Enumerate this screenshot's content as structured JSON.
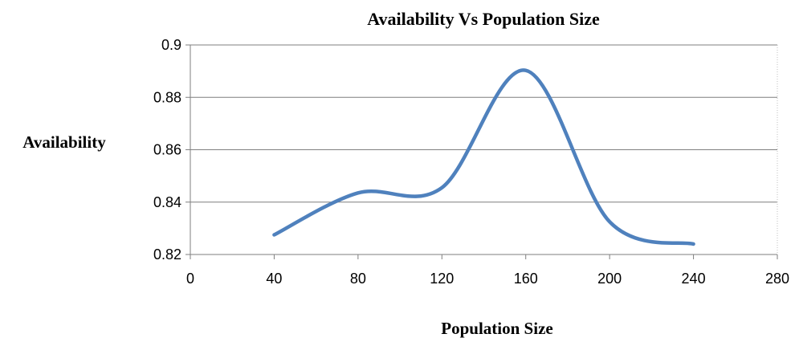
{
  "chart_data": {
    "type": "line",
    "title": "Availability Vs Population Size",
    "xlabel": "Population Size",
    "ylabel": "Availability",
    "xlim": [
      0,
      280
    ],
    "ylim": [
      0.82,
      0.9
    ],
    "xticks": [
      "0",
      "40",
      "80",
      "120",
      "160",
      "200",
      "240",
      "280"
    ],
    "yticks": [
      "0.82",
      "0.84",
      "0.86",
      "0.88",
      "0.9"
    ],
    "grid": "horizontal",
    "legend": "none",
    "series": [
      {
        "color": "#4f81bd",
        "smooth": true,
        "x": [
          40,
          80,
          120,
          160,
          200,
          240
        ],
        "y": [
          0.8275,
          0.8435,
          0.8455,
          0.8903,
          0.8325,
          0.824
        ]
      }
    ]
  }
}
